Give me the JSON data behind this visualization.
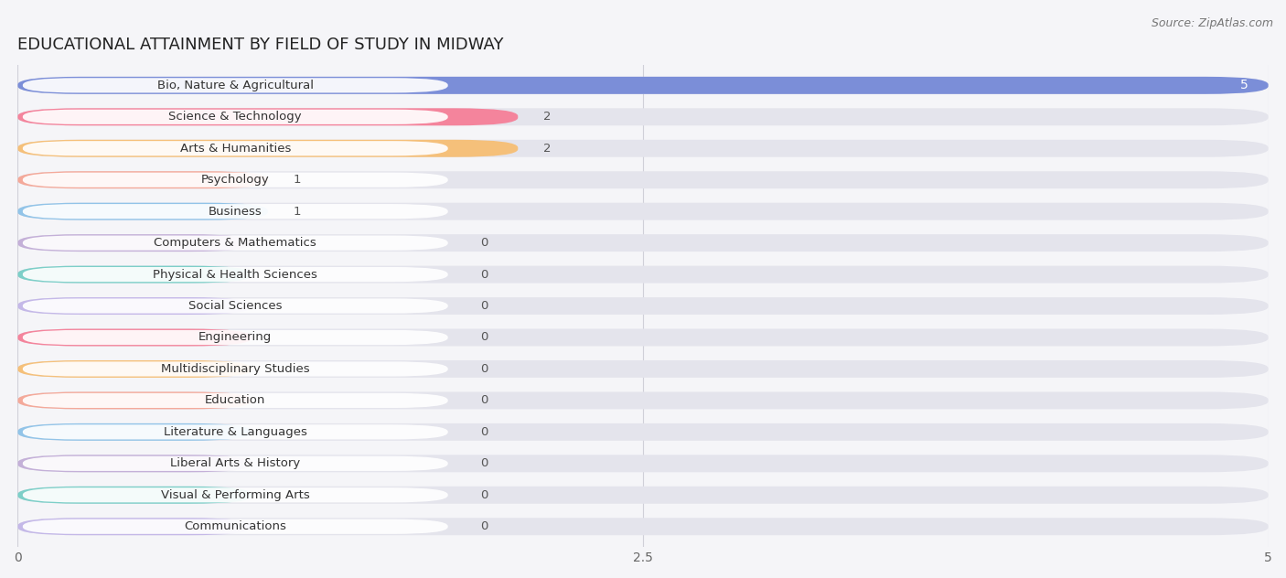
{
  "title": "EDUCATIONAL ATTAINMENT BY FIELD OF STUDY IN MIDWAY",
  "source": "Source: ZipAtlas.com",
  "categories": [
    "Bio, Nature & Agricultural",
    "Science & Technology",
    "Arts & Humanities",
    "Psychology",
    "Business",
    "Computers & Mathematics",
    "Physical & Health Sciences",
    "Social Sciences",
    "Engineering",
    "Multidisciplinary Studies",
    "Education",
    "Literature & Languages",
    "Liberal Arts & History",
    "Visual & Performing Arts",
    "Communications"
  ],
  "values": [
    5,
    2,
    2,
    1,
    1,
    0,
    0,
    0,
    0,
    0,
    0,
    0,
    0,
    0,
    0
  ],
  "colors": [
    "#7b8ed8",
    "#f4849c",
    "#f5c07a",
    "#f4a99a",
    "#92c4e8",
    "#c4b0d8",
    "#7dcfc8",
    "#c4b8e8",
    "#f4849c",
    "#f5c07a",
    "#f4a99a",
    "#92c4e8",
    "#c4b0d8",
    "#7dcfc8",
    "#c4b8e8"
  ],
  "xlim": [
    0,
    5
  ],
  "xticks": [
    0,
    2.5,
    5
  ],
  "background_color": "#f5f5f8",
  "bar_background_color": "#e4e4ec",
  "bar_label_bg": "#ffffff",
  "title_fontsize": 13,
  "label_fontsize": 9.5,
  "tick_fontsize": 10,
  "value_label_color": "#555555",
  "value_label_white": "#ffffff",
  "title_color": "#222222",
  "source_color": "#777777",
  "grid_color": "#d0d0d8"
}
